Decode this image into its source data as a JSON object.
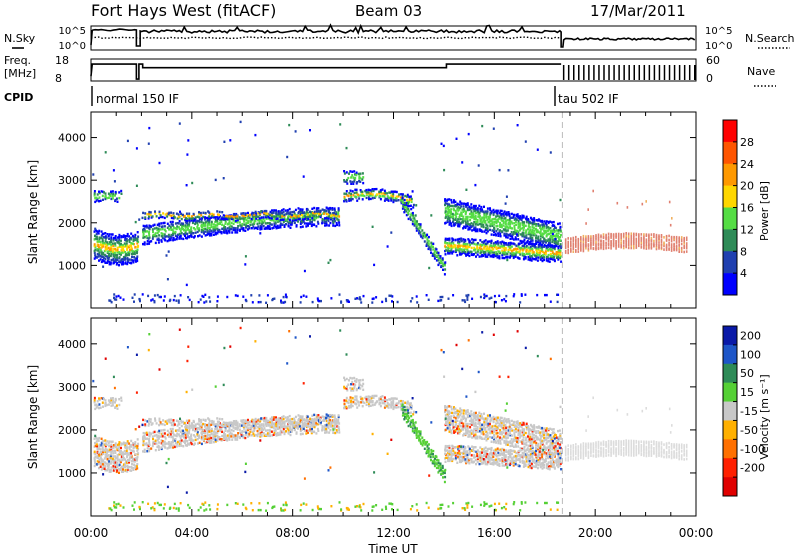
{
  "header": {
    "station": "Fort Hays West (fitACF)",
    "beam": "Beam 03",
    "date": "17/Mar/2011"
  },
  "params": {
    "nsky_label": "N.Sky",
    "nsky_ticks": [
      "10^5",
      "10^0"
    ],
    "nsearch_label": "N.Search",
    "nsearch_ticks": [
      "10^5",
      "10^0"
    ],
    "freq_label": "Freq.",
    "freq_unit": "[MHz]",
    "freq_ticks": [
      "18",
      "8"
    ],
    "nave_label": "Nave",
    "nave_ticks": [
      "60",
      "0"
    ],
    "cpid_label": "CPID",
    "cpid_modes": [
      {
        "name": "normal 150 IF",
        "start_h": 0.0
      },
      {
        "name": "tau 502 IF",
        "start_h": 18.75
      }
    ]
  },
  "chart_data": [
    {
      "type": "heatmap",
      "xlabel": "Time UT",
      "ylabel": "Slant Range [km]",
      "xlim": [
        0,
        24
      ],
      "ylim": [
        0,
        4600
      ],
      "x_ticks": [
        "00:00",
        "04:00",
        "08:00",
        "12:00",
        "16:00",
        "20:00",
        "00:00"
      ],
      "y_ticks": [
        "1000",
        "2000",
        "3000",
        "4000"
      ],
      "colorbar_label": "Power [dB]",
      "colorbar_ticks": [
        "4",
        "8",
        "12",
        "16",
        "20",
        "24",
        "28"
      ],
      "colorbar_range": [
        0,
        32
      ],
      "colors": [
        "#0000ff",
        "#2040b0",
        "#2e8b57",
        "#55dd44",
        "#ffd700",
        "#ff9900",
        "#ff5500",
        "#ff0000"
      ],
      "mode_boundary_h": 18.7
    },
    {
      "type": "heatmap",
      "xlabel": "Time UT",
      "ylabel": "Slant Range [km]",
      "xlim": [
        0,
        24
      ],
      "ylim": [
        0,
        4600
      ],
      "x_ticks": [
        "00:00",
        "04:00",
        "08:00",
        "12:00",
        "16:00",
        "20:00",
        "00:00"
      ],
      "y_ticks": [
        "1000",
        "2000",
        "3000",
        "4000"
      ],
      "colorbar_label": "Velocity [m s⁻¹]",
      "colorbar_ticks": [
        "200",
        "100",
        "50",
        "15",
        "-15",
        "-50",
        "-100",
        "-200"
      ],
      "colors": [
        "#0a1aa8",
        "#1e56c8",
        "#2e8b57",
        "#55d035",
        "#c8c8c8",
        "#ffb000",
        "#ff7000",
        "#ff2000",
        "#e00000"
      ],
      "mode_boundary_h": 18.7
    }
  ]
}
